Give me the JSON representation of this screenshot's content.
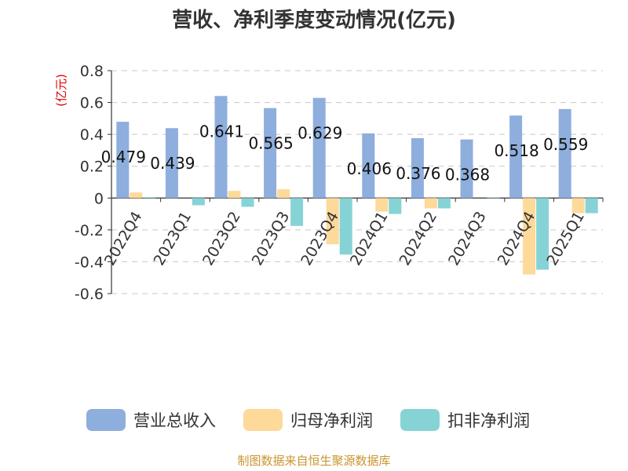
{
  "chart_data": {
    "type": "bar",
    "title": "营收、净利季度变动情况(亿元)",
    "unit_label": "(亿元)",
    "categories": [
      "2022Q4",
      "2023Q1",
      "2023Q2",
      "2023Q3",
      "2023Q4",
      "2024Q1",
      "2024Q2",
      "2024Q3",
      "2024Q4",
      "2025Q1"
    ],
    "series": [
      {
        "name": "营业总收入",
        "color": "#8eaedd",
        "values": [
          0.479,
          0.439,
          0.641,
          0.565,
          0.629,
          0.406,
          0.376,
          0.368,
          0.518,
          0.559
        ],
        "labels": [
          "0.479",
          "0.439",
          "0.641",
          "0.565",
          "0.629",
          "0.406",
          "0.376",
          "0.368",
          "0.518",
          "0.559"
        ]
      },
      {
        "name": "归母净利润",
        "color": "#fdd99a",
        "values": [
          0.035,
          0.0,
          0.045,
          0.055,
          -0.29,
          -0.085,
          -0.065,
          0.0,
          -0.48,
          -0.095
        ]
      },
      {
        "name": "扣非净利润",
        "color": "#86d3d6",
        "values": [
          0.005,
          -0.045,
          -0.055,
          -0.175,
          -0.355,
          -0.1,
          -0.065,
          0.003,
          -0.45,
          -0.095
        ]
      }
    ],
    "ylim": [
      -0.6,
      0.8
    ],
    "yticks": [
      "0.8",
      "0.6",
      "0.4",
      "0.2",
      "0",
      "-0.2",
      "-0.4",
      "-0.6"
    ],
    "ytick_values": [
      0.8,
      0.6,
      0.4,
      0.2,
      0,
      -0.2,
      -0.4,
      -0.6
    ],
    "grid": true,
    "legend_position": "bottom"
  },
  "source": "制图数据来自恒生聚源数据库"
}
